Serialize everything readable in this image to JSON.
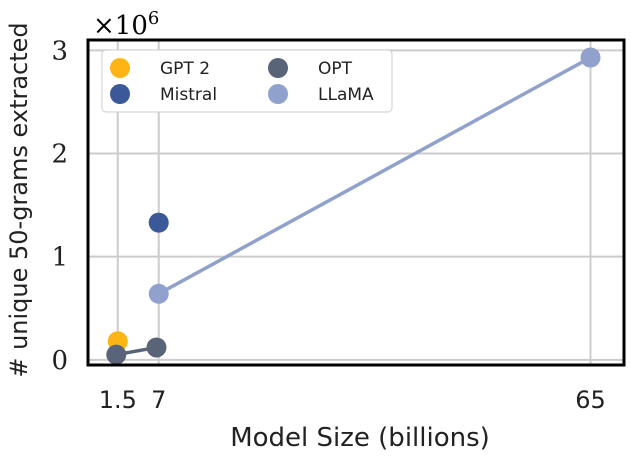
{
  "chart_data": {
    "type": "scatter",
    "xlabel": "Model Size (billions)",
    "ylabel": "# unique 50-grams extracted",
    "y_scale_label": "×10^6",
    "y_scale_base": "×10",
    "y_scale_exp": "6",
    "xlim": [
      -2.5,
      69.5
    ],
    "ylim": [
      -0.05,
      3.1
    ],
    "x_ticks": [
      1.5,
      7,
      65
    ],
    "x_tick_labels": [
      "1.5",
      "7",
      "65"
    ],
    "y_ticks": [
      0,
      1,
      2,
      3
    ],
    "y_tick_labels": [
      "0",
      "1",
      "2",
      "3"
    ],
    "grid": true,
    "legend_position": "top-left",
    "series": [
      {
        "name": "GPT 2",
        "color": "#FDB515",
        "connected": false,
        "points": [
          {
            "x": 1.5,
            "y": 0.18
          }
        ]
      },
      {
        "name": "OPT",
        "color": "#5A6478",
        "connected": true,
        "points": [
          {
            "x": 1.3,
            "y": 0.05
          },
          {
            "x": 6.7,
            "y": 0.12
          }
        ]
      },
      {
        "name": "Mistral",
        "color": "#3B5998",
        "connected": false,
        "points": [
          {
            "x": 7,
            "y": 1.33
          }
        ]
      },
      {
        "name": "LLaMA",
        "color": "#8FA1CC",
        "connected": true,
        "points": [
          {
            "x": 7,
            "y": 0.64
          },
          {
            "x": 65,
            "y": 2.93
          }
        ]
      }
    ],
    "legend_order": [
      "GPT 2",
      "OPT",
      "Mistral",
      "LLaMA"
    ]
  }
}
